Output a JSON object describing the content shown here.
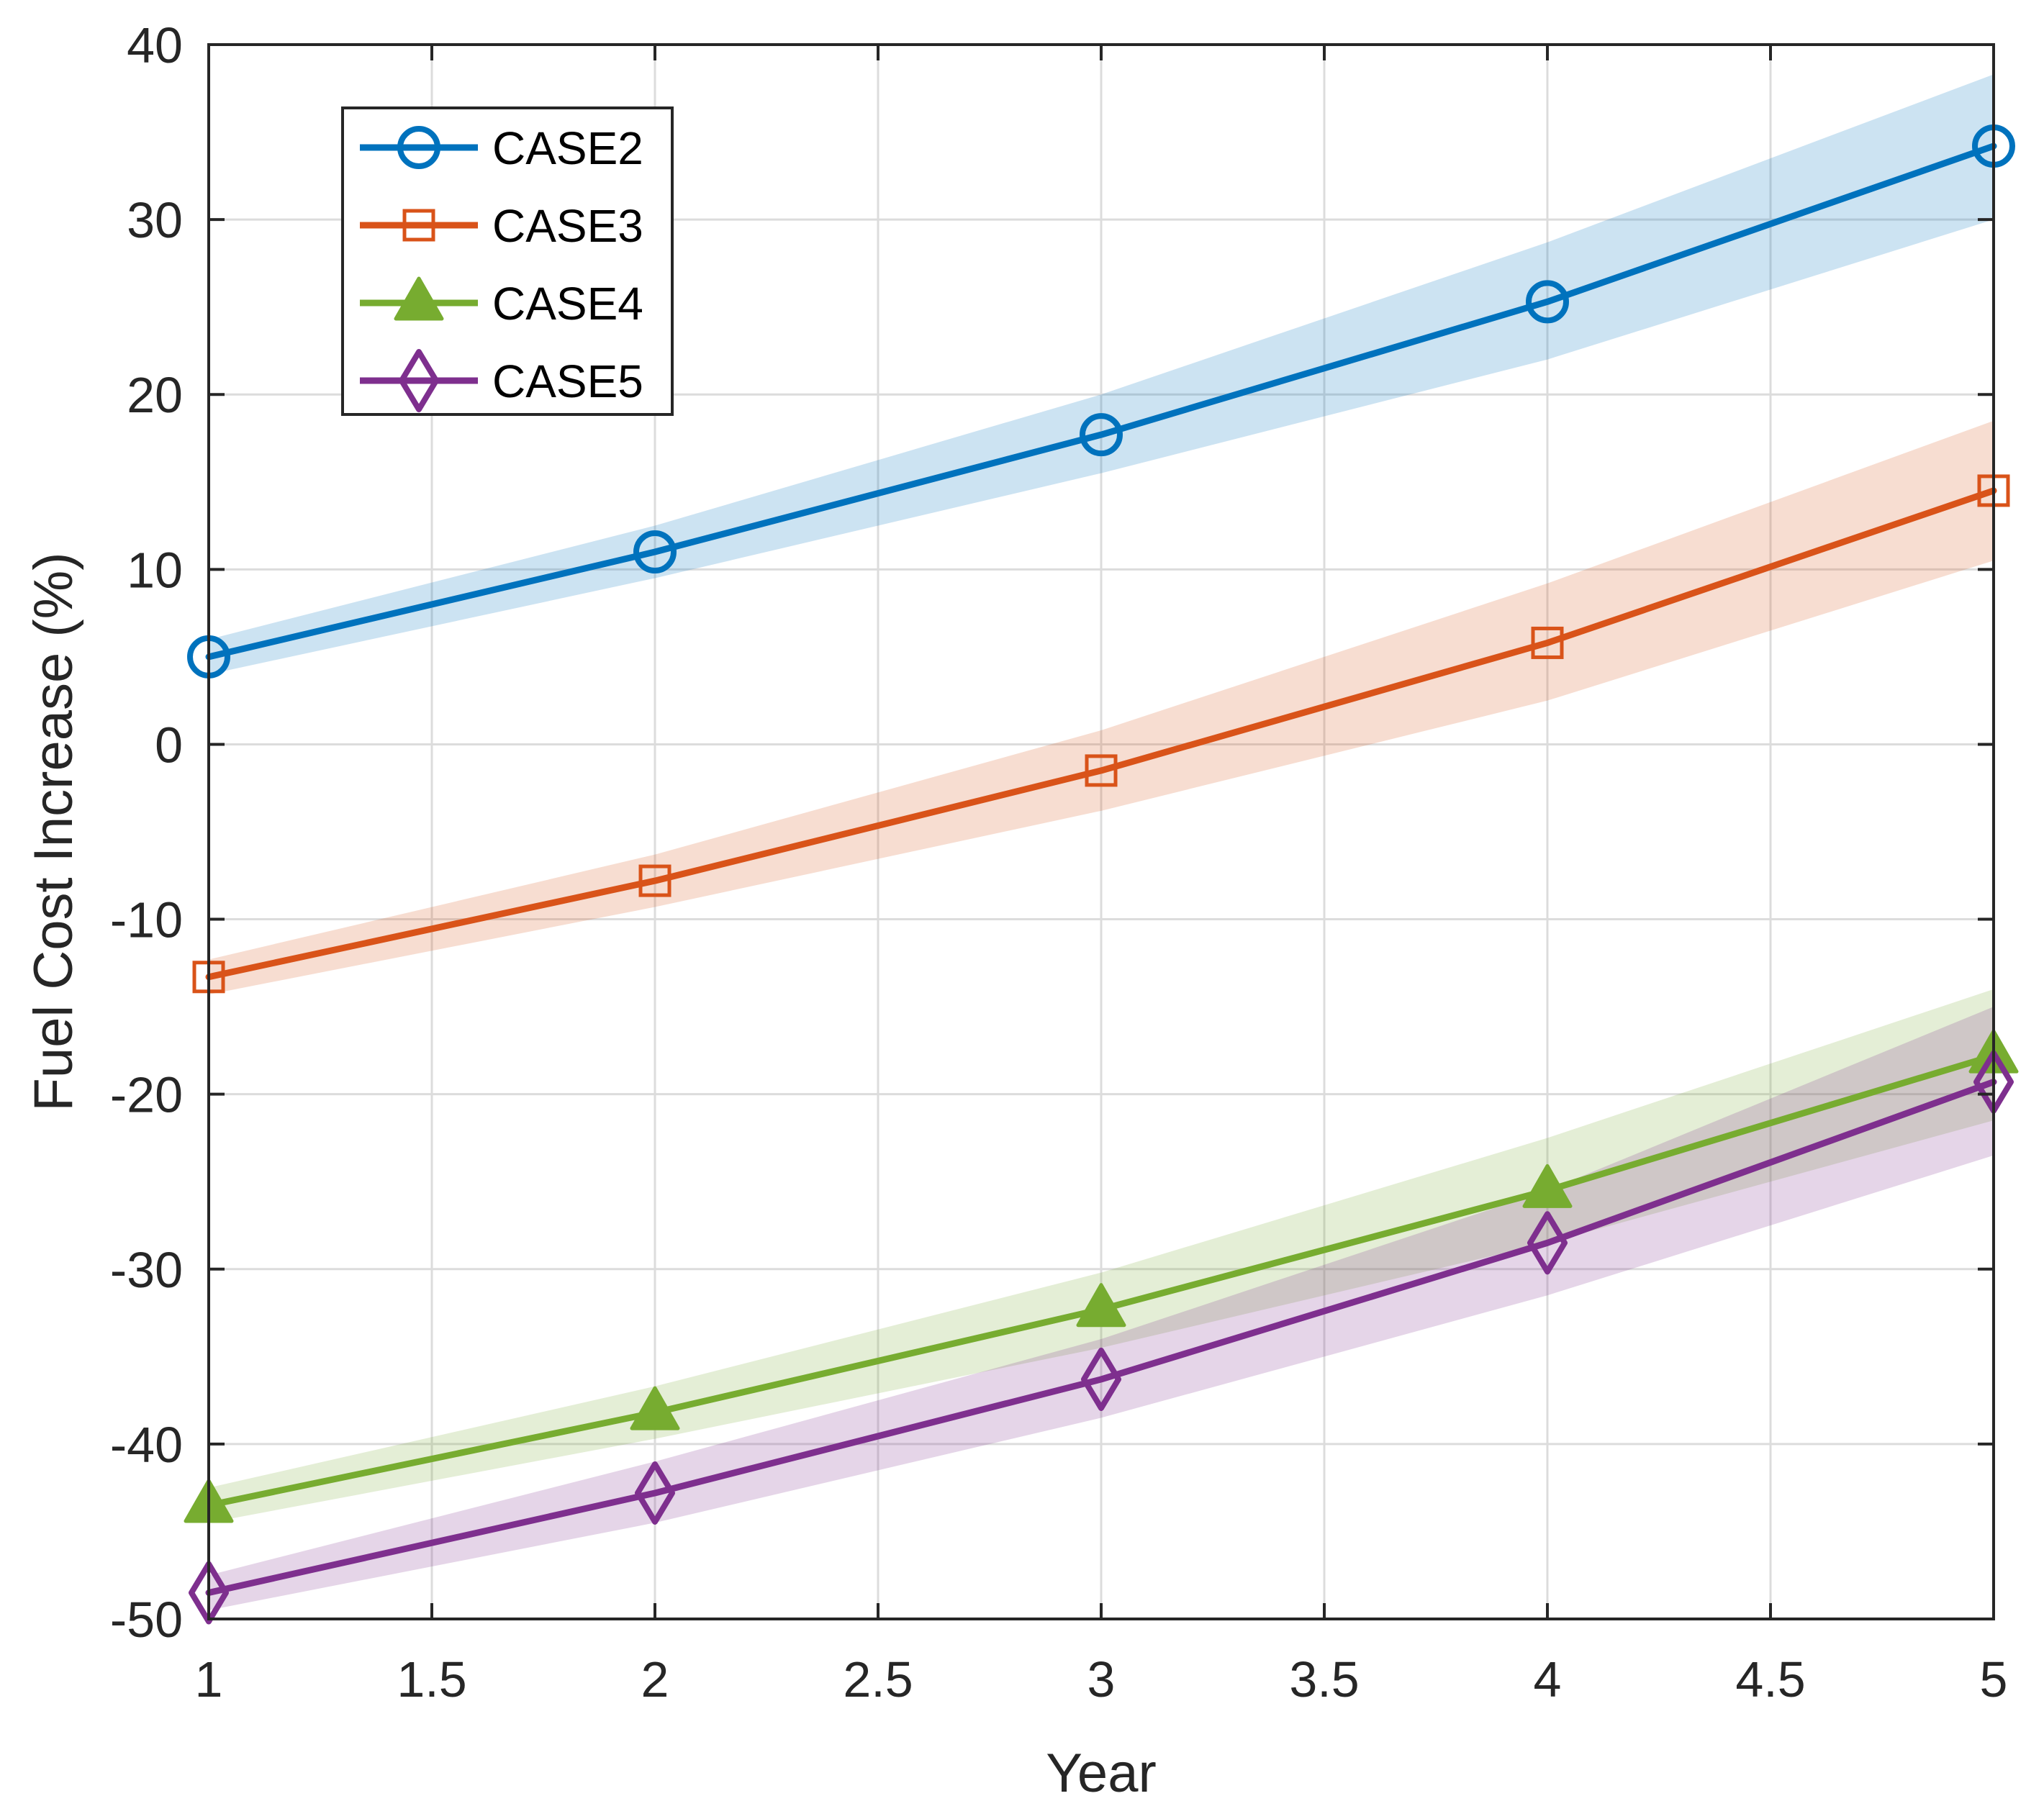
{
  "chart_data": {
    "type": "line",
    "title": "",
    "xlabel": "Year",
    "ylabel": "Fuel Cost Increase (%)",
    "xlim": [
      1,
      5
    ],
    "ylim": [
      -50,
      40
    ],
    "xticks": [
      1,
      1.5,
      2,
      2.5,
      3,
      3.5,
      4,
      4.5,
      5
    ],
    "xtick_labels": [
      "1",
      "1.5",
      "2",
      "2.5",
      "3",
      "3.5",
      "4",
      "4.5",
      "5"
    ],
    "yticks": [
      40,
      30,
      20,
      10,
      0,
      -10,
      -20,
      -30,
      -40,
      -50
    ],
    "ytick_labels": [
      "40",
      "30",
      "20",
      "10",
      "0",
      "-10",
      "-20",
      "-30",
      "-40",
      "-50"
    ],
    "grid": true,
    "legend_position": "top-left",
    "x": [
      1,
      2,
      3,
      4,
      5
    ],
    "series": [
      {
        "name": "CASE2",
        "color": "#0072BD",
        "marker": "circle",
        "values": [
          5.0,
          11.0,
          17.7,
          25.3,
          34.2
        ],
        "band_lower": [
          4.0,
          9.5,
          15.5,
          22.0,
          30.0
        ],
        "band_upper": [
          6.0,
          12.5,
          20.0,
          28.7,
          38.3
        ]
      },
      {
        "name": "CASE3",
        "color": "#D95319",
        "marker": "square",
        "values": [
          -13.3,
          -7.8,
          -1.5,
          5.8,
          14.5
        ],
        "band_lower": [
          -14.3,
          -9.3,
          -3.8,
          2.5,
          10.5
        ],
        "band_upper": [
          -12.3,
          -6.3,
          0.8,
          9.2,
          18.5
        ]
      },
      {
        "name": "CASE4",
        "color": "#77AC30",
        "marker": "triangle",
        "values": [
          -43.5,
          -38.2,
          -32.3,
          -25.5,
          -17.8
        ],
        "band_lower": [
          -44.5,
          -39.7,
          -34.5,
          -28.5,
          -21.5
        ],
        "band_upper": [
          -42.5,
          -36.7,
          -30.2,
          -22.5,
          -14.0
        ]
      },
      {
        "name": "CASE5",
        "color": "#7E2F8E",
        "marker": "diamond",
        "values": [
          -48.5,
          -42.8,
          -36.3,
          -28.5,
          -19.3
        ],
        "band_lower": [
          -49.5,
          -44.5,
          -38.5,
          -31.5,
          -23.5
        ],
        "band_upper": [
          -47.5,
          -41.0,
          -34.0,
          -25.5,
          -15.0
        ]
      }
    ]
  }
}
